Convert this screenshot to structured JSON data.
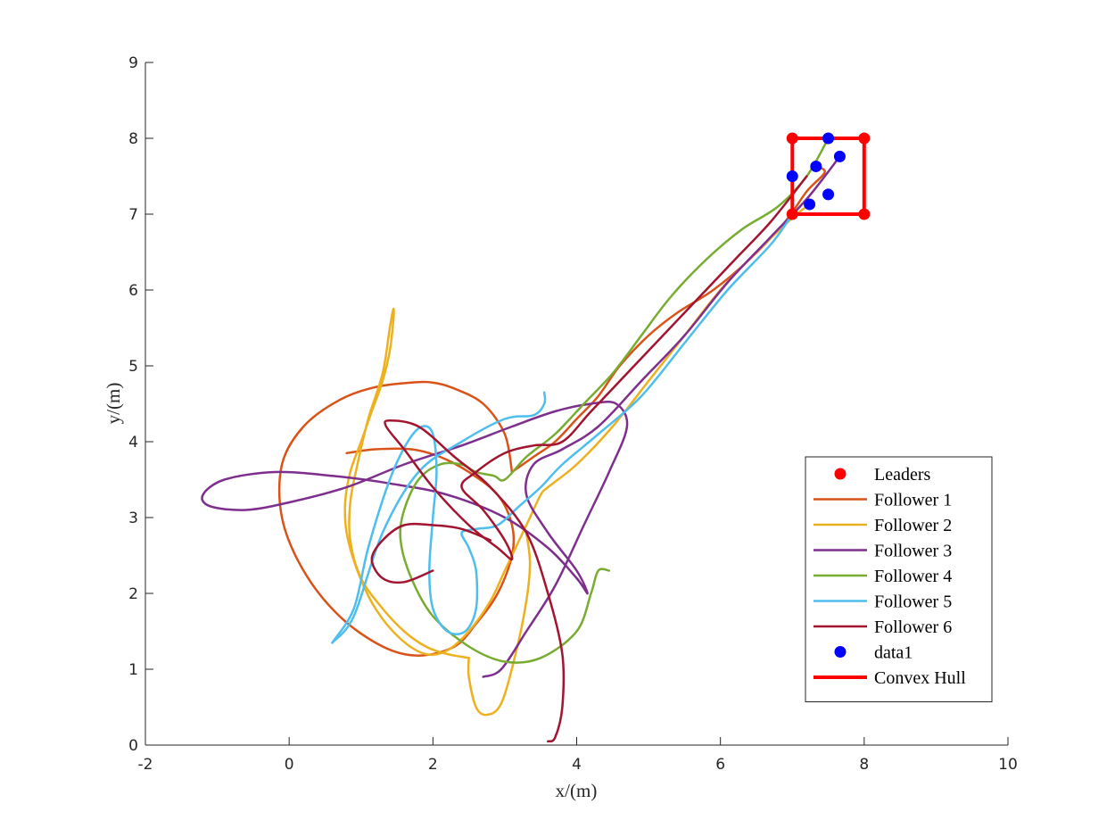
{
  "chart_data": {
    "type": "line",
    "title": "",
    "xlabel": "x/(m)",
    "ylabel": "y/(m)",
    "xlim": [
      -2,
      10
    ],
    "ylim": [
      0,
      9
    ],
    "xticks": [
      -2,
      0,
      2,
      4,
      6,
      8,
      10
    ],
    "yticks": [
      0,
      1,
      2,
      3,
      4,
      5,
      6,
      7,
      8,
      9
    ],
    "xtick_labels": [
      "-2",
      "0",
      "2",
      "4",
      "6",
      "8",
      "10"
    ],
    "ytick_labels": [
      "0",
      "1",
      "2",
      "3",
      "4",
      "5",
      "6",
      "7",
      "8",
      "9"
    ],
    "grid": false,
    "legend_position": "bottom-right",
    "leaders": {
      "name": "Leaders",
      "color": "#ff0000",
      "points": [
        [
          7,
          7
        ],
        [
          7,
          8
        ],
        [
          8,
          8
        ],
        [
          8,
          7
        ]
      ]
    },
    "convex_hull": {
      "name": "Convex Hull",
      "color": "#ff0000",
      "points": [
        [
          7,
          7
        ],
        [
          7,
          8
        ],
        [
          8,
          8
        ],
        [
          8,
          7
        ],
        [
          7,
          7
        ]
      ]
    },
    "data1": {
      "name": "data1",
      "color": "#0000ff",
      "points": [
        [
          7.0,
          7.5
        ],
        [
          7.33,
          7.63
        ],
        [
          7.66,
          7.76
        ],
        [
          7.5,
          8.0
        ],
        [
          7.5,
          7.26
        ],
        [
          7.24,
          7.13
        ]
      ]
    },
    "series": [
      {
        "name": "Follower 1",
        "color": "#d95319",
        "x": [
          3.1,
          3.4,
          3.7,
          4.0,
          4.3,
          4.6,
          5.0,
          5.4,
          5.9,
          6.4,
          6.9,
          7.2,
          7.45,
          7.33
        ],
        "y": [
          3.6,
          3.8,
          4.0,
          4.3,
          4.6,
          5.0,
          5.4,
          5.7,
          6.0,
          6.4,
          6.9,
          7.3,
          7.55,
          7.63
        ]
      },
      {
        "name": "Follower 1",
        "color": "#d95319",
        "x": [
          3.1,
          3.0,
          2.7,
          2.3,
          2.0,
          1.7,
          1.2,
          0.7,
          0.2,
          -0.1,
          -0.1,
          0.2,
          0.7,
          1.3,
          1.8,
          2.3,
          2.6,
          2.9,
          3.1,
          3.1,
          2.9,
          2.5,
          2.1,
          1.7,
          1.2,
          0.8
        ],
        "y": [
          3.6,
          4.1,
          4.5,
          4.7,
          4.78,
          4.78,
          4.72,
          4.55,
          4.2,
          3.7,
          3.0,
          2.3,
          1.7,
          1.3,
          1.18,
          1.3,
          1.6,
          2.0,
          2.5,
          2.9,
          3.3,
          3.6,
          3.8,
          3.9,
          3.9,
          3.85
        ]
      },
      {
        "name": "Follower 2",
        "color": "#edb120",
        "x": [
          2.5,
          2.2,
          1.9,
          1.6,
          1.3,
          1.0,
          0.85,
          0.85,
          0.95,
          1.1,
          1.3,
          1.4,
          1.45,
          1.45,
          1.4,
          1.3,
          1.15,
          1.0,
          0.85,
          0.78,
          0.8,
          0.95,
          1.2,
          1.55,
          1.9,
          2.2,
          2.5,
          2.8,
          3.0,
          3.2,
          3.35,
          3.5,
          3.6,
          4.0,
          4.5,
          5.0,
          5.5,
          6.0,
          6.5,
          7.0,
          7.24
        ],
        "y": [
          1.15,
          1.2,
          1.3,
          1.5,
          1.8,
          2.2,
          2.7,
          3.2,
          3.7,
          4.3,
          4.9,
          5.5,
          5.75,
          5.6,
          5.2,
          4.8,
          4.4,
          4.0,
          3.6,
          3.2,
          2.8,
          2.3,
          1.8,
          1.4,
          1.2,
          1.25,
          1.5,
          1.9,
          2.3,
          2.7,
          3.0,
          3.3,
          3.4,
          3.7,
          4.2,
          4.8,
          5.4,
          6.0,
          6.5,
          6.95,
          7.13
        ]
      },
      {
        "name": "Follower 2",
        "color": "#edb120",
        "x": [
          3.3,
          3.35,
          3.3,
          3.15,
          2.95,
          2.75,
          2.6,
          2.5,
          2.5
        ],
        "y": [
          2.8,
          2.4,
          1.9,
          1.2,
          0.55,
          0.4,
          0.5,
          0.9,
          1.15
        ]
      },
      {
        "name": "Follower 3",
        "color": "#7e2f8e",
        "x": [
          2.7,
          2.95,
          3.3,
          3.7,
          4.1,
          4.45,
          4.7,
          4.55,
          4.2,
          3.7,
          3.1,
          2.4,
          1.6,
          0.8,
          0.0,
          -0.6,
          -1.1,
          -1.2,
          -0.9,
          -0.2,
          0.6,
          1.4,
          2.2,
          3.0,
          3.6,
          4.0,
          4.15,
          4.0,
          3.6,
          3.3,
          3.4,
          3.8,
          4.3,
          4.9,
          5.5,
          6.1,
          6.7,
          7.2,
          7.66
        ],
        "y": [
          0.9,
          1.0,
          1.5,
          2.1,
          2.9,
          3.6,
          4.2,
          4.5,
          4.5,
          4.4,
          4.2,
          3.95,
          3.7,
          3.4,
          3.2,
          3.1,
          3.15,
          3.3,
          3.5,
          3.6,
          3.55,
          3.45,
          3.3,
          3.0,
          2.6,
          2.2,
          2.0,
          2.3,
          2.8,
          3.3,
          3.7,
          3.9,
          4.2,
          4.8,
          5.4,
          6.1,
          6.7,
          7.2,
          7.76
        ]
      },
      {
        "name": "Follower 4",
        "color": "#77ac30",
        "x": [
          4.45,
          4.3,
          4.2,
          4.0,
          3.5,
          3.0,
          2.5,
          2.0,
          1.7,
          1.55,
          1.6,
          1.8,
          2.1,
          2.4,
          2.6,
          2.85,
          3.0,
          3.3,
          3.7,
          4.1,
          4.5,
          4.9,
          5.3,
          5.8,
          6.3,
          6.8,
          7.2,
          7.5
        ],
        "y": [
          2.3,
          2.3,
          2.0,
          1.5,
          1.15,
          1.1,
          1.3,
          1.7,
          2.2,
          2.7,
          3.1,
          3.5,
          3.7,
          3.7,
          3.6,
          3.55,
          3.5,
          3.8,
          4.1,
          4.5,
          4.9,
          5.4,
          5.9,
          6.4,
          6.8,
          7.1,
          7.5,
          8.0
        ]
      },
      {
        "name": "Follower 5",
        "color": "#4dbeee",
        "x": [
          0.6,
          0.9,
          1.1,
          1.4,
          1.65,
          1.85,
          2.0,
          2.05,
          2.0,
          1.95,
          2.0,
          2.2,
          2.45,
          2.6,
          2.6,
          2.5,
          2.4,
          2.6,
          2.9,
          3.2,
          3.5,
          3.8,
          4.3,
          4.9,
          5.5,
          6.1,
          6.7,
          7.0
        ],
        "y": [
          1.35,
          1.8,
          2.6,
          3.5,
          4.0,
          4.2,
          4.1,
          3.6,
          3.0,
          2.3,
          1.8,
          1.5,
          1.5,
          1.8,
          2.3,
          2.6,
          2.8,
          2.85,
          2.9,
          3.15,
          3.4,
          3.7,
          4.1,
          4.6,
          5.3,
          6.0,
          6.6,
          7.0
        ]
      },
      {
        "name": "Follower 5",
        "color": "#4dbeee",
        "x": [
          0.6,
          0.9,
          1.3,
          1.8,
          2.4,
          3.0,
          3.4,
          3.55,
          3.55
        ],
        "y": [
          1.35,
          1.7,
          2.8,
          3.6,
          4.0,
          4.3,
          4.35,
          4.5,
          4.65
        ]
      },
      {
        "name": "Follower 6",
        "color": "#a2142f",
        "x": [
          3.6,
          3.7,
          3.8,
          3.8,
          3.6,
          3.3,
          2.8,
          2.3,
          1.8,
          1.4,
          1.35,
          1.6,
          2.0,
          2.5,
          2.9,
          3.1,
          3.0,
          2.7,
          2.4,
          2.6,
          3.0,
          3.4,
          3.8,
          4.2,
          4.7,
          5.2,
          5.7,
          6.2,
          6.7,
          7.2
        ],
        "y": [
          0.05,
          0.1,
          0.5,
          1.2,
          2.0,
          2.8,
          3.4,
          3.8,
          4.2,
          4.28,
          4.2,
          3.9,
          3.4,
          2.9,
          2.6,
          2.45,
          2.7,
          3.1,
          3.4,
          3.6,
          3.85,
          3.95,
          4.0,
          4.4,
          4.9,
          5.4,
          5.9,
          6.4,
          6.9,
          7.5
        ]
      },
      {
        "name": "Follower 6",
        "color": "#a2142f",
        "x": [
          2.8,
          2.4,
          2.0,
          1.6,
          1.3,
          1.15,
          1.3,
          1.6,
          2.0
        ],
        "y": [
          2.7,
          2.85,
          2.9,
          2.9,
          2.7,
          2.45,
          2.2,
          2.15,
          2.3
        ]
      }
    ],
    "legend": [
      {
        "label": "Leaders",
        "kind": "marker",
        "color": "#ff0000"
      },
      {
        "label": "Follower 1",
        "kind": "line",
        "color": "#d95319"
      },
      {
        "label": "Follower 2",
        "kind": "line",
        "color": "#edb120"
      },
      {
        "label": "Follower 3",
        "kind": "line",
        "color": "#7e2f8e"
      },
      {
        "label": "Follower 4",
        "kind": "line",
        "color": "#77ac30"
      },
      {
        "label": "Follower 5",
        "kind": "line",
        "color": "#4dbeee"
      },
      {
        "label": "Follower 6",
        "kind": "line",
        "color": "#a2142f"
      },
      {
        "label": "data1",
        "kind": "marker",
        "color": "#0000ff"
      },
      {
        "label": "Convex Hull",
        "kind": "thickline",
        "color": "#ff0000"
      }
    ]
  }
}
